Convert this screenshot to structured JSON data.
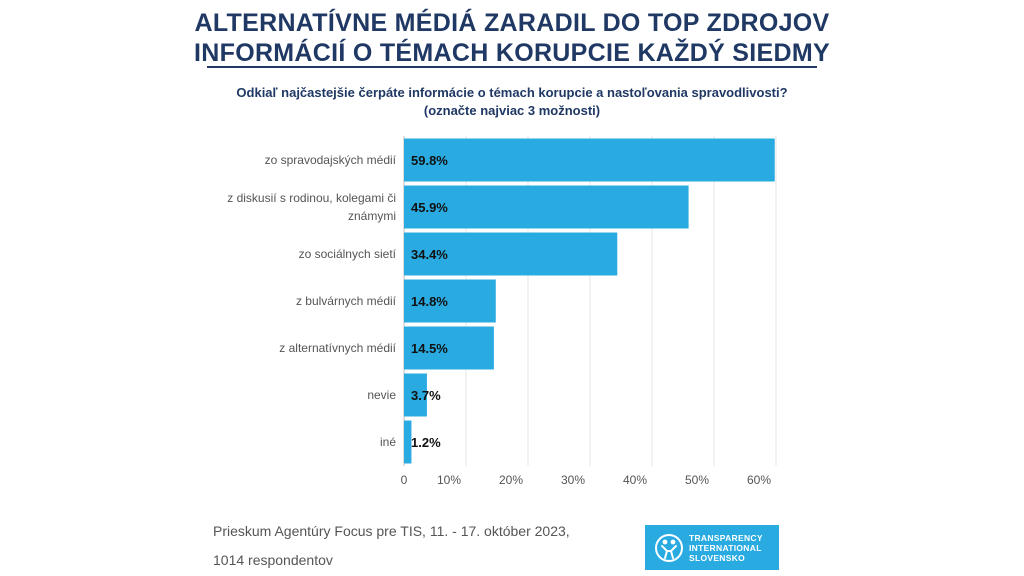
{
  "header": {
    "title_line1": "ALTERNATÍVNE MÉDIÁ ZARADIL DO TOP ZDROJOV",
    "title_line2": "INFORMÁCIÍ O TÉMACH KORUPCIE KAŽDÝ SIEDMY",
    "question_line1": "Odkiaľ najčastejšie čerpáte informácie o témach korupcie a nastoľovania spravodlivosti?",
    "question_line2": "(označte najviac 3 možnosti)"
  },
  "chart_data": {
    "type": "bar",
    "orientation": "horizontal",
    "categories": [
      [
        "zo spravodajských médií"
      ],
      [
        "z diskusií s rodinou, kolegami či",
        "známymi"
      ],
      [
        "zo sociálnych sietí"
      ],
      [
        "z bulvárnych médií"
      ],
      [
        "z alternatívnych médií"
      ],
      [
        "nevie"
      ],
      [
        "iné"
      ]
    ],
    "values": [
      59.8,
      45.9,
      34.4,
      14.8,
      14.5,
      3.7,
      1.2
    ],
    "value_labels": [
      "59.8%",
      "45.9%",
      "34.4%",
      "14.8%",
      "14.5%",
      "3.7%",
      "1.2%"
    ],
    "xlim": [
      0,
      60
    ],
    "ticks": [
      0,
      10,
      20,
      30,
      40,
      50,
      60
    ],
    "tick_labels": [
      "0",
      "10%",
      "20%",
      "30%",
      "40%",
      "50%",
      "60%"
    ],
    "bar_color": "#29abe2",
    "grid_color": "#e6e6e6",
    "grid": true
  },
  "footer": {
    "source_line1": "Prieskum Agentúry Focus pre TIS, 11. - 17. október 2023,",
    "source_line2": "1014 respondentov",
    "logo_line1": "TRANSPARENCY",
    "logo_line2": "INTERNATIONAL",
    "logo_line3": "SLOVENSKO",
    "logo_color": "#29abe2"
  }
}
